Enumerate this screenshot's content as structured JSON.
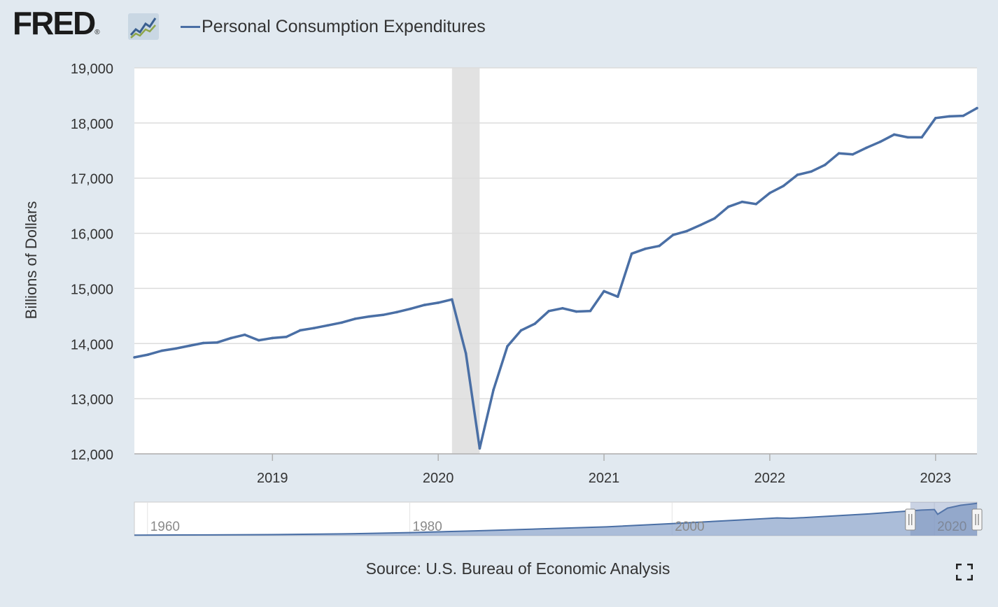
{
  "header": {
    "logo_text": "FRED",
    "logo_registered": "®",
    "logo_icon": "fred-chart-icon"
  },
  "legend": {
    "series_label": "Personal Consumption Expenditures",
    "series_color": "#4a6fa5"
  },
  "chart_data": {
    "type": "line",
    "title": "Personal Consumption Expenditures",
    "xlabel": "",
    "ylabel": "Billions of Dollars",
    "xlim": [
      2018.167,
      2023.25
    ],
    "ylim": [
      12000,
      19000
    ],
    "y_ticks": [
      12000,
      13000,
      14000,
      15000,
      16000,
      17000,
      18000,
      19000
    ],
    "y_tick_labels": [
      "12,000",
      "13,000",
      "14,000",
      "15,000",
      "16,000",
      "17,000",
      "18,000",
      "19,000"
    ],
    "x_ticks": [
      2019,
      2020,
      2021,
      2022,
      2023
    ],
    "x_tick_labels": [
      "2019",
      "2020",
      "2021",
      "2022",
      "2023"
    ],
    "grid": true,
    "recession": [
      2020.083,
      2020.25
    ],
    "series": [
      {
        "name": "Personal Consumption Expenditures",
        "color": "#4a6fa5",
        "x": [
          2018.167,
          2018.25,
          2018.333,
          2018.417,
          2018.5,
          2018.583,
          2018.667,
          2018.75,
          2018.833,
          2018.917,
          2019.0,
          2019.083,
          2019.167,
          2019.25,
          2019.333,
          2019.417,
          2019.5,
          2019.583,
          2019.667,
          2019.75,
          2019.833,
          2019.917,
          2020.0,
          2020.083,
          2020.167,
          2020.25,
          2020.333,
          2020.417,
          2020.5,
          2020.583,
          2020.667,
          2020.75,
          2020.833,
          2020.917,
          2021.0,
          2021.083,
          2021.167,
          2021.25,
          2021.333,
          2021.417,
          2021.5,
          2021.583,
          2021.667,
          2021.75,
          2021.833,
          2021.917,
          2022.0,
          2022.083,
          2022.167,
          2022.25,
          2022.333,
          2022.417,
          2022.5,
          2022.583,
          2022.667,
          2022.75,
          2022.833,
          2022.917,
          2023.0,
          2023.083,
          2023.167,
          2023.25
        ],
        "values": [
          13750,
          13800,
          13870,
          13910,
          13960,
          14010,
          14020,
          14100,
          14160,
          14060,
          14100,
          14120,
          14240,
          14280,
          14330,
          14380,
          14450,
          14490,
          14520,
          14570,
          14630,
          14700,
          14740,
          14800,
          13820,
          12100,
          13160,
          13950,
          14240,
          14360,
          14590,
          14640,
          14580,
          14590,
          14950,
          14850,
          15630,
          15720,
          15770,
          15970,
          16040,
          16150,
          16270,
          16480,
          16570,
          16530,
          16730,
          16860,
          17060,
          17120,
          17240,
          17450,
          17430,
          17550,
          17660,
          17790,
          17740,
          17740,
          18090,
          18120,
          18130,
          18270
        ]
      }
    ],
    "navigator": {
      "x_ticks": [
        1960,
        1980,
        2000,
        2020
      ],
      "x_tick_labels": [
        "1960",
        "1980",
        "2000",
        "2020"
      ],
      "xlim": [
        1959,
        2023.25
      ],
      "ylim": [
        0,
        19000
      ],
      "x": [
        1959,
        1965,
        1970,
        1975,
        1980,
        1985,
        1990,
        1995,
        2000,
        2005,
        2008,
        2009,
        2010,
        2015,
        2019,
        2020,
        2020.25,
        2021,
        2022,
        2023.25
      ],
      "values": [
        310,
        440,
        650,
        1030,
        1760,
        2720,
        3830,
        4990,
        6830,
        8790,
        10050,
        9860,
        10200,
        12300,
        14500,
        14800,
        12100,
        15600,
        17200,
        18270
      ],
      "selected_range": [
        2018.167,
        2023.25
      ]
    }
  },
  "source": {
    "text": "Source: U.S. Bureau of Economic Analysis"
  },
  "controls": {
    "fullscreen_icon": "fullscreen-icon"
  }
}
